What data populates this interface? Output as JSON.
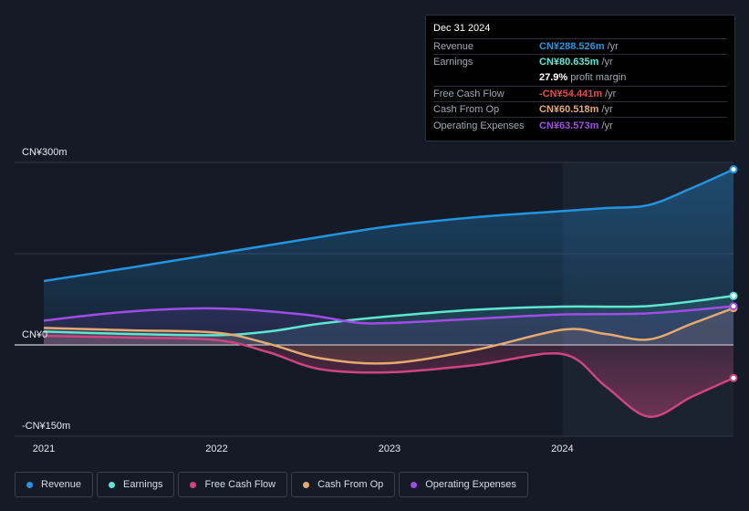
{
  "chart_data": {
    "type": "area",
    "x_ticks": [
      2021,
      2022,
      2023,
      2024
    ],
    "xlim": [
      2021.0,
      2024.99
    ],
    "ylim": [
      -150,
      300
    ],
    "y_labels": [
      {
        "value": 300,
        "text": "CN¥300m"
      },
      {
        "value": 0,
        "text": "CN¥0"
      },
      {
        "value": -150,
        "text": "-CN¥150m"
      }
    ],
    "highlight_start": 2024.0,
    "series": [
      {
        "name": "Revenue",
        "color": "#2394df",
        "points": [
          [
            2021.0,
            105
          ],
          [
            2021.5,
            127
          ],
          [
            2022.0,
            150
          ],
          [
            2022.5,
            173
          ],
          [
            2023.0,
            195
          ],
          [
            2023.5,
            210
          ],
          [
            2024.0,
            220
          ],
          [
            2024.25,
            225
          ],
          [
            2024.5,
            230
          ],
          [
            2024.75,
            258
          ],
          [
            2024.99,
            288.5
          ]
        ]
      },
      {
        "name": "Earnings",
        "color": "#5ee6d3",
        "points": [
          [
            2021.0,
            22
          ],
          [
            2021.5,
            18
          ],
          [
            2022.0,
            16
          ],
          [
            2022.3,
            22
          ],
          [
            2022.6,
            35
          ],
          [
            2023.0,
            47
          ],
          [
            2023.5,
            58
          ],
          [
            2024.0,
            63
          ],
          [
            2024.5,
            64
          ],
          [
            2024.99,
            80.6
          ]
        ]
      },
      {
        "name": "Free Cash Flow",
        "color": "#d0457f",
        "points": [
          [
            2021.0,
            15
          ],
          [
            2021.5,
            12
          ],
          [
            2022.0,
            8
          ],
          [
            2022.3,
            -12
          ],
          [
            2022.6,
            -40
          ],
          [
            2023.0,
            -45
          ],
          [
            2023.5,
            -33
          ],
          [
            2024.0,
            -15
          ],
          [
            2024.25,
            -68
          ],
          [
            2024.5,
            -118
          ],
          [
            2024.75,
            -85
          ],
          [
            2024.99,
            -54.4
          ]
        ]
      },
      {
        "name": "Cash From Op",
        "color": "#e6a96f",
        "points": [
          [
            2021.0,
            28
          ],
          [
            2021.5,
            24
          ],
          [
            2022.0,
            20
          ],
          [
            2022.3,
            2
          ],
          [
            2022.6,
            -22
          ],
          [
            2023.0,
            -30
          ],
          [
            2023.5,
            -8
          ],
          [
            2024.0,
            25
          ],
          [
            2024.25,
            18
          ],
          [
            2024.5,
            9
          ],
          [
            2024.75,
            35
          ],
          [
            2024.99,
            60.5
          ]
        ]
      },
      {
        "name": "Operating Expenses",
        "color": "#a04ce6",
        "points": [
          [
            2021.0,
            40
          ],
          [
            2021.5,
            55
          ],
          [
            2022.0,
            60
          ],
          [
            2022.5,
            50
          ],
          [
            2022.8,
            37
          ],
          [
            2023.0,
            36
          ],
          [
            2023.5,
            43
          ],
          [
            2024.0,
            50
          ],
          [
            2024.5,
            52
          ],
          [
            2024.99,
            63.6
          ]
        ]
      }
    ]
  },
  "tooltip": {
    "date": "Dec 31 2024",
    "rows": [
      {
        "label": "Revenue",
        "value": "CN¥288.526m",
        "unit": "/yr",
        "color": "#2394df"
      },
      {
        "label": "Earnings",
        "value": "CN¥80.635m",
        "unit": "/yr",
        "color": "#5ee6d3"
      },
      {
        "label": "",
        "value": "27.9%",
        "unit": "profit margin",
        "color": "#ffffff"
      },
      {
        "label": "Free Cash Flow",
        "value": "-CN¥54.441m",
        "unit": "/yr",
        "color": "#e8484f"
      },
      {
        "label": "Cash From Op",
        "value": "CN¥60.518m",
        "unit": "/yr",
        "color": "#e6a96f"
      },
      {
        "label": "Operating Expenses",
        "value": "CN¥63.573m",
        "unit": "/yr",
        "color": "#a04ce6"
      }
    ]
  },
  "legend": [
    {
      "label": "Revenue",
      "color": "#2394df"
    },
    {
      "label": "Earnings",
      "color": "#5ee6d3"
    },
    {
      "label": "Free Cash Flow",
      "color": "#d0457f"
    },
    {
      "label": "Cash From Op",
      "color": "#e6a96f"
    },
    {
      "label": "Operating Expenses",
      "color": "#a04ce6"
    }
  ]
}
